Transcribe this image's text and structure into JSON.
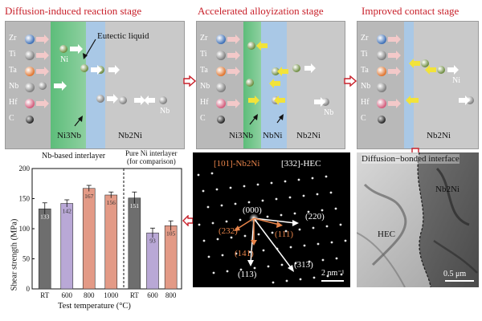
{
  "stages": {
    "s1": {
      "title": "Diffusion-induced reaction stage"
    },
    "s2": {
      "title": "Accelerated alloyization stage"
    },
    "s3": {
      "title": "Improved contact stage"
    }
  },
  "elements": [
    "Zr",
    "Ti",
    "Ta",
    "Nb",
    "Hf",
    "C"
  ],
  "labels": {
    "ni": "Ni",
    "nb": "Nb",
    "eutectic": "Eutectic liquid",
    "ni3nb": "Ni3Nb",
    "nbni": "NbNi",
    "nb2ni": "Nb2Ni"
  },
  "colors": {
    "stage_title": "#c8202a",
    "hec_bg": "#b9b9b9",
    "green_layer": "#5dbd7a",
    "blue_layer": "#a9c8e6",
    "nb2ni_bg": "#c9c9c9",
    "arrow_red": "#c8202a",
    "bar_gray": "#6e6e6e",
    "bar_purple": "#b9a8d6",
    "bar_salmon": "#e39a86"
  },
  "saed": {
    "title_left": "[101]-Nb2Ni",
    "title_right": "[332]-HEC",
    "scale": "2 nm⁻¹",
    "spots": {
      "s000": "(000)",
      "s220": "(220)",
      "s232": "(232)",
      "s111": "(111)",
      "s141": "(141)",
      "s313": "(313)",
      "s113": "(113)"
    }
  },
  "tem": {
    "title": "Diffusion−bonded interface",
    "hec": "HEC",
    "nb2ni": "Nb2Ni",
    "scale": "0.5 μm"
  },
  "chart_data": {
    "type": "bar",
    "ylabel": "Shear strength (MPa)",
    "xlabel": "Test temperature (°C)",
    "ylim": [
      0,
      200
    ],
    "yticks": [
      0,
      50,
      100,
      150,
      200
    ],
    "groups": [
      {
        "name": "Nb-based interlayer",
        "categories": [
          "RT",
          "600",
          "800",
          "1000"
        ],
        "values": [
          133,
          142,
          167,
          156
        ],
        "errors": [
          10,
          6,
          5,
          5
        ]
      },
      {
        "name": "Pure Ni interlayer (for comparison)",
        "categories": [
          "RT",
          "600",
          "800"
        ],
        "values": [
          151,
          93,
          105
        ],
        "errors": [
          10,
          8,
          8
        ]
      }
    ],
    "bar_colors": [
      "#6e6e6e",
      "#b9a8d6",
      "#e39a86",
      "#e39a86"
    ],
    "group2_label_line1": "Pure Ni interlayer",
    "group2_label_line2": "(for comparison)"
  }
}
